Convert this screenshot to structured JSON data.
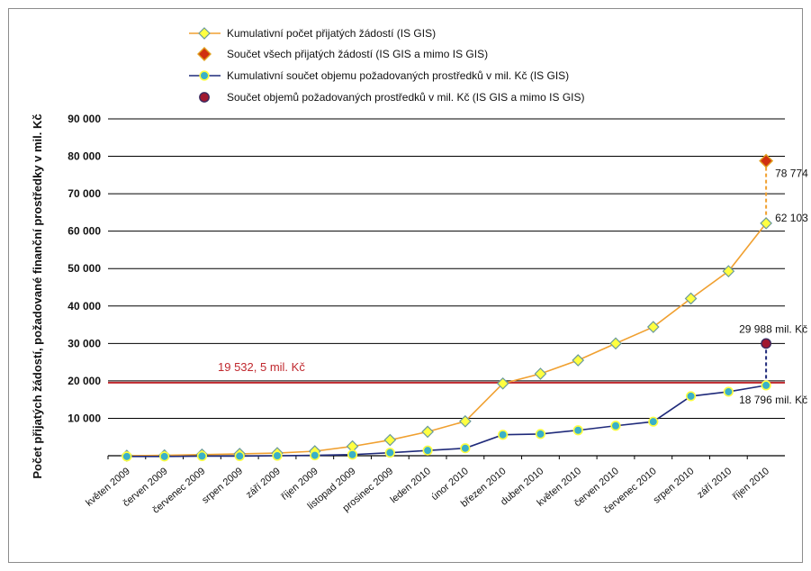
{
  "chart_data": {
    "type": "line",
    "ylabel": "Počet přijatých žádostí, požadované finanční prostředky v mil. Kč",
    "xlabel": "",
    "ylim": [
      0,
      90000
    ],
    "yticks": [
      {
        "value": 90000,
        "label": "90 000"
      },
      {
        "value": 80000,
        "label": "80 000"
      },
      {
        "value": 70000,
        "label": "70 000"
      },
      {
        "value": 60000,
        "label": "60 000"
      },
      {
        "value": 50000,
        "label": "50 000"
      },
      {
        "value": 40000,
        "label": "40 000"
      },
      {
        "value": 30000,
        "label": "30 000"
      },
      {
        "value": 20000,
        "label": "20 000"
      },
      {
        "value": 10000,
        "label": "10 000"
      }
    ],
    "categories": [
      "květen 2009",
      "červen 2009",
      "červenec 2009",
      "srpen 2009",
      "září 2009",
      "říjen 2009",
      "listopad 2009",
      "prosinec 2009",
      "leden 2010",
      "únor 2010",
      "březen 2010",
      "duben 2010",
      "květen 2010",
      "červen 2010",
      "červenec 2010",
      "srpen 2010",
      "září 2010",
      "říjen 2010"
    ],
    "series": [
      {
        "name": "Kumulativní počet přijatých žádostí (IS GIS)",
        "color": "#f0a030",
        "marker": "diamond-yellow",
        "values": [
          0,
          100,
          300,
          500,
          700,
          1200,
          2500,
          4200,
          6400,
          9200,
          19300,
          21900,
          25500,
          30000,
          34400,
          42000,
          49300,
          62103
        ]
      },
      {
        "name": "Součet všech přijatých žádostí (IS GIS a mimo IS GIS)",
        "color": "#d04010",
        "marker": "diamond-red",
        "points": [
          {
            "category": "říjen 2010",
            "value": 78774
          }
        ]
      },
      {
        "name": "Kumulativní součet objemu požadovaných prostředků v mil. Kč (IS GIS)",
        "color": "#1f2a7a",
        "marker": "circle-yellow",
        "values": [
          -200,
          -200,
          -100,
          -100,
          0,
          100,
          300,
          800,
          1400,
          2000,
          5600,
          5800,
          6800,
          8000,
          9100,
          15900,
          17100,
          18796
        ]
      },
      {
        "name": "Součet objemů požadovaných prostředků v mil. Kč (IS GIS a mimo IS GIS)",
        "color": "#a01830",
        "marker": "circle-red",
        "points": [
          {
            "category": "říjen 2010",
            "value": 29988
          }
        ]
      }
    ],
    "reference_line": {
      "value": 19532.5,
      "label": "19 532, 5 mil. Kč",
      "color": "#c0282e"
    },
    "annotations": [
      {
        "label": "78 774"
      },
      {
        "label": "62 103"
      },
      {
        "label": "29 988 mil. Kč"
      },
      {
        "label": "18 796 mil. Kč"
      }
    ],
    "grid": true,
    "legend_position": "top"
  }
}
